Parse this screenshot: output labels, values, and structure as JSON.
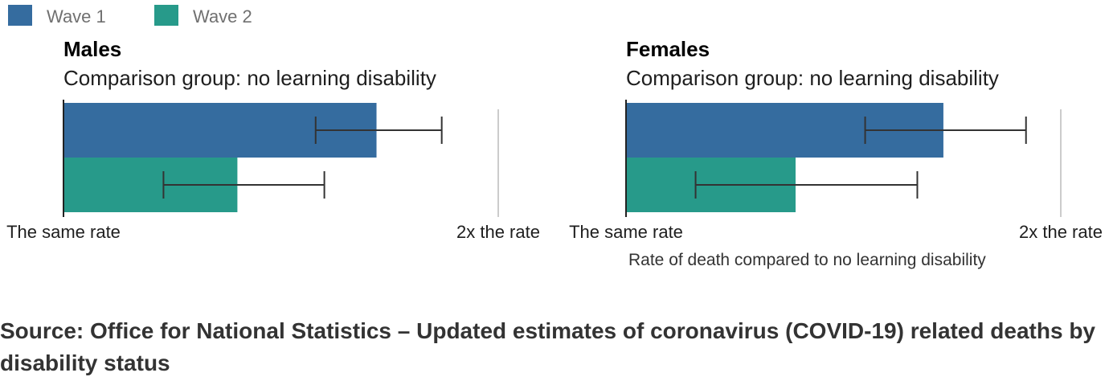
{
  "legend": {
    "items": [
      {
        "label": "Wave 1",
        "color": "#356c9f"
      },
      {
        "label": "Wave 2",
        "color": "#279a8a"
      }
    ]
  },
  "chart_data": [
    {
      "type": "bar",
      "orientation": "horizontal",
      "title": "Males",
      "subtitle": "Comparison group: no learning disability",
      "xlim": [
        1,
        2
      ],
      "xtick_labels": [
        "The same rate",
        "2x the rate"
      ],
      "series": [
        {
          "name": "Wave 1",
          "color": "#356c9f",
          "value": 1.72,
          "ci_low": 1.58,
          "ci_high": 1.87
        },
        {
          "name": "Wave 2",
          "color": "#279a8a",
          "value": 1.4,
          "ci_low": 1.23,
          "ci_high": 1.6
        }
      ]
    },
    {
      "type": "bar",
      "orientation": "horizontal",
      "title": "Females",
      "subtitle": "Comparison group: no learning disability",
      "xlim": [
        1,
        2
      ],
      "xtick_labels": [
        "The same rate",
        "2x the rate"
      ],
      "series": [
        {
          "name": "Wave 1",
          "color": "#356c9f",
          "value": 1.73,
          "ci_low": 1.55,
          "ci_high": 1.92
        },
        {
          "name": "Wave 2",
          "color": "#279a8a",
          "value": 1.39,
          "ci_low": 1.16,
          "ci_high": 1.67
        }
      ]
    }
  ],
  "x_axis_title": "Rate of death compared to no learning disability",
  "source": "Source: Office for National Statistics – Updated estimates of coronavirus (COVID-19) related deaths by disability status"
}
